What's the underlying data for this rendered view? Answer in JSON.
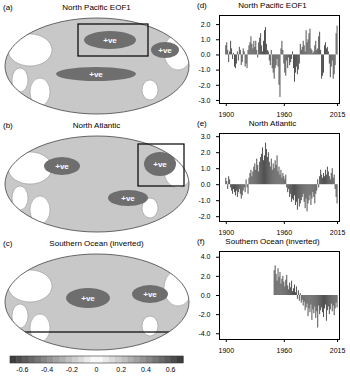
{
  "maps": [
    {
      "label": "(a)",
      "title": "North Pacific EOF1",
      "annotations": [
        "+ve",
        "+ve",
        "+ve"
      ]
    },
    {
      "label": "(b)",
      "title": "North Atlantic",
      "annotations": [
        "+ve",
        "+ve",
        "+ve"
      ]
    },
    {
      "label": "(c)",
      "title": "Southern Ocean (inverted)",
      "annotations": [
        "+ve",
        "+ve"
      ]
    }
  ],
  "colorbar": {
    "range": [
      -0.7,
      0.7
    ],
    "ticks": [
      -0.6,
      -0.4,
      -0.2,
      0,
      0.2,
      0.4,
      0.6
    ]
  },
  "chart_data": [
    {
      "type": "bar",
      "label": "(d)",
      "title": "North Pacific EOF1",
      "color": "#4d4d4d",
      "x": [
        1900,
        1901,
        1902,
        1903,
        1904,
        1905,
        1906,
        1907,
        1908,
        1909,
        1910,
        1911,
        1912,
        1913,
        1914,
        1915,
        1916,
        1917,
        1918,
        1919,
        1920,
        1921,
        1922,
        1923,
        1924,
        1925,
        1926,
        1927,
        1928,
        1929,
        1930,
        1931,
        1932,
        1933,
        1934,
        1935,
        1936,
        1937,
        1938,
        1939,
        1940,
        1941,
        1942,
        1943,
        1944,
        1945,
        1946,
        1947,
        1948,
        1949,
        1950,
        1951,
        1952,
        1953,
        1954,
        1955,
        1956,
        1957,
        1958,
        1959,
        1960,
        1961,
        1962,
        1963,
        1964,
        1965,
        1966,
        1967,
        1968,
        1969,
        1970,
        1971,
        1972,
        1973,
        1974,
        1975,
        1976,
        1977,
        1978,
        1979,
        1980,
        1981,
        1982,
        1983,
        1984,
        1985,
        1986,
        1987,
        1988,
        1989,
        1990,
        1991,
        1992,
        1993,
        1994,
        1995,
        1996,
        1997,
        1998,
        1999,
        2000,
        2001,
        2002,
        2003,
        2004,
        2005,
        2006,
        2007,
        2008,
        2009,
        2010,
        2011,
        2012,
        2013,
        2014,
        2015
      ],
      "values": [
        0.6,
        0.8,
        0.3,
        -0.5,
        0.2,
        0.9,
        0.4,
        -0.3,
        0.1,
        -0.8,
        -0.9,
        -0.6,
        0.2,
        -0.4,
        0.5,
        0.3,
        -0.7,
        -0.5,
        0.4,
        0.2,
        -0.8,
        -0.6,
        -0.9,
        0.3,
        0.6,
        0.8,
        1.2,
        0.7,
        0.4,
        0.9,
        0.5,
        0.9,
        0.3,
        -0.2,
        0.8,
        1.1,
        1.4,
        0.6,
        0.2,
        0.9,
        1.6,
        1.8,
        0.7,
        0.3,
        0.2,
        -0.4,
        -0.7,
        0.3,
        -0.9,
        -1.2,
        -1.6,
        -0.9,
        -0.7,
        -0.3,
        -0.8,
        -2.0,
        -2.8,
        0.4,
        0.9,
        0.3,
        -0.6,
        -1.2,
        -1.4,
        -0.4,
        -0.9,
        -0.2,
        -0.7,
        -0.5,
        -0.3,
        0.2,
        -0.9,
        -1.8,
        -1.2,
        -0.8,
        -1.3,
        -1.0,
        -0.6,
        0.7,
        0.3,
        0.5,
        0.9,
        0.6,
        0.2,
        1.6,
        0.8,
        1.0,
        1.4,
        1.7,
        0.4,
        0.3,
        0.1,
        0.2,
        0.6,
        0.9,
        0.3,
        0.4,
        1.2,
        1.5,
        0.3,
        -1.6,
        -1.4,
        -1.2,
        0.6,
        0.8,
        0.4,
        0.5,
        0.2,
        -0.6,
        -1.5,
        -0.8,
        -0.4,
        -1.6,
        -1.3,
        -0.7,
        1.4,
        1.9
      ],
      "xlim": [
        1893,
        2017
      ],
      "xticks": [
        1900,
        1960,
        2015
      ],
      "ylim": [
        -3.2,
        2.6
      ],
      "yticks": [
        {
          "value": -3,
          "label": "-3.0"
        },
        {
          "value": -2,
          "label": "-2.0"
        },
        {
          "value": -1,
          "label": "-1.0"
        },
        {
          "value": 0,
          "label": "0.0"
        },
        {
          "value": 1,
          "label": "1.0"
        },
        {
          "value": 2,
          "label": "2.0"
        }
      ]
    },
    {
      "type": "bar",
      "label": "(e)",
      "title": "North Atlantic",
      "color": "#4d4d4d",
      "x": [
        1900,
        1901,
        1902,
        1903,
        1904,
        1905,
        1906,
        1907,
        1908,
        1909,
        1910,
        1911,
        1912,
        1913,
        1914,
        1915,
        1916,
        1917,
        1918,
        1919,
        1920,
        1921,
        1922,
        1923,
        1924,
        1925,
        1926,
        1927,
        1928,
        1929,
        1930,
        1931,
        1932,
        1933,
        1934,
        1935,
        1936,
        1937,
        1938,
        1939,
        1940,
        1941,
        1942,
        1943,
        1944,
        1945,
        1946,
        1947,
        1948,
        1949,
        1950,
        1951,
        1952,
        1953,
        1954,
        1955,
        1956,
        1957,
        1958,
        1959,
        1960,
        1961,
        1962,
        1963,
        1964,
        1965,
        1966,
        1967,
        1968,
        1969,
        1970,
        1971,
        1972,
        1973,
        1974,
        1975,
        1976,
        1977,
        1978,
        1979,
        1980,
        1981,
        1982,
        1983,
        1984,
        1985,
        1986,
        1987,
        1988,
        1989,
        1990,
        1991,
        1992,
        1993,
        1994,
        1995,
        1996,
        1997,
        1998,
        1999,
        2000,
        2001,
        2002,
        2003,
        2004,
        2005,
        2006,
        2007,
        2008,
        2009,
        2010,
        2011,
        2012,
        2013,
        2014,
        2015
      ],
      "values": [
        0.4,
        0.2,
        -0.3,
        0.5,
        0.3,
        -0.2,
        -0.4,
        -0.6,
        -0.3,
        -0.5,
        -0.7,
        -0.4,
        -0.8,
        -0.5,
        -0.3,
        -0.6,
        -0.9,
        -0.7,
        -0.4,
        -0.2,
        -0.5,
        0.3,
        -0.2,
        -0.6,
        0.4,
        0.7,
        0.9,
        0.5,
        0.8,
        1.1,
        1.3,
        0.9,
        1.6,
        1.2,
        0.8,
        1.4,
        1.7,
        1.9,
        2.3,
        1.5,
        1.8,
        2.6,
        2.2,
        1.7,
        2.0,
        1.4,
        1.1,
        1.6,
        0.9,
        1.3,
        1.0,
        1.5,
        1.2,
        1.8,
        0.8,
        1.1,
        0.6,
        0.9,
        0.4,
        0.7,
        0.5,
        0.3,
        0.6,
        -0.2,
        -0.5,
        -0.3,
        -0.8,
        -0.6,
        -1.1,
        -0.9,
        -1.0,
        -0.7,
        -1.3,
        -1.1,
        -1.6,
        -0.9,
        -1.4,
        -1.2,
        -1.0,
        -0.8,
        -0.6,
        -1.1,
        -1.5,
        -0.9,
        -1.7,
        -1.2,
        -1.0,
        -0.7,
        -1.3,
        -0.9,
        -0.5,
        -0.8,
        -1.2,
        -0.6,
        -0.4,
        0.3,
        -0.2,
        0.5,
        0.9,
        0.6,
        0.4,
        0.7,
        0.5,
        0.9,
        0.6,
        1.1,
        0.8,
        0.5,
        0.3,
        0.7,
        1.0,
        0.4,
        0.6,
        -0.3,
        -0.8,
        -1.2
      ],
      "xlim": [
        1893,
        2017
      ],
      "xticks": [
        1900,
        1960,
        2015
      ],
      "ylim": [
        -2.3,
        3.2
      ],
      "yticks": [
        {
          "value": -2,
          "label": "-2.0"
        },
        {
          "value": -1,
          "label": "-1.0"
        },
        {
          "value": 0,
          "label": "0.0"
        },
        {
          "value": 1,
          "label": "1.0"
        },
        {
          "value": 2,
          "label": "2.0"
        },
        {
          "value": 3,
          "label": "3.0"
        }
      ]
    },
    {
      "type": "bar",
      "label": "(f)",
      "title": "Southern Ocean (inverted)",
      "color": "#4d4d4d",
      "x": [
        1950,
        1951,
        1952,
        1953,
        1954,
        1955,
        1956,
        1957,
        1958,
        1959,
        1960,
        1961,
        1962,
        1963,
        1964,
        1965,
        1966,
        1967,
        1968,
        1969,
        1970,
        1971,
        1972,
        1973,
        1974,
        1975,
        1976,
        1977,
        1978,
        1979,
        1980,
        1981,
        1982,
        1983,
        1984,
        1985,
        1986,
        1987,
        1988,
        1989,
        1990,
        1991,
        1992,
        1993,
        1994,
        1995,
        1996,
        1997,
        1998,
        1999,
        2000,
        2001,
        2002,
        2003,
        2004,
        2005,
        2006,
        2007,
        2008,
        2009,
        2010,
        2011,
        2012,
        2013,
        2014,
        2015
      ],
      "values": [
        2.6,
        3.1,
        2.2,
        1.5,
        2.8,
        1.9,
        2.4,
        1.2,
        1.7,
        2.0,
        1.4,
        0.9,
        1.6,
        2.1,
        1.0,
        0.6,
        1.3,
        0.8,
        1.5,
        0.4,
        0.7,
        1.1,
        0.3,
        0.9,
        -0.4,
        0.5,
        -0.6,
        0.2,
        -0.8,
        -0.5,
        -1.1,
        -0.7,
        -1.6,
        -1.3,
        -0.9,
        -2.2,
        -1.4,
        -1.8,
        -1.0,
        -2.6,
        -1.5,
        -1.9,
        -1.2,
        -2.4,
        -1.7,
        -3.4,
        -1.1,
        -2.0,
        -1.6,
        -1.3,
        -1.8,
        -2.3,
        -1.4,
        -1.0,
        -2.7,
        -1.6,
        -1.2,
        -2.0,
        -1.5,
        -0.9,
        -1.7,
        -1.1,
        -2.1,
        -1.4,
        -0.8,
        -1.3
      ],
      "xlim": [
        1893,
        2017
      ],
      "xticks": [
        1900,
        1960,
        2015
      ],
      "ylim": [
        -4.6,
        4.6
      ],
      "yticks": [
        {
          "value": -4,
          "label": "-4.0"
        },
        {
          "value": -2,
          "label": "-2.0"
        },
        {
          "value": 0,
          "label": "0.0"
        },
        {
          "value": 2,
          "label": "2.0"
        },
        {
          "value": 4,
          "label": "4.0"
        }
      ]
    }
  ]
}
